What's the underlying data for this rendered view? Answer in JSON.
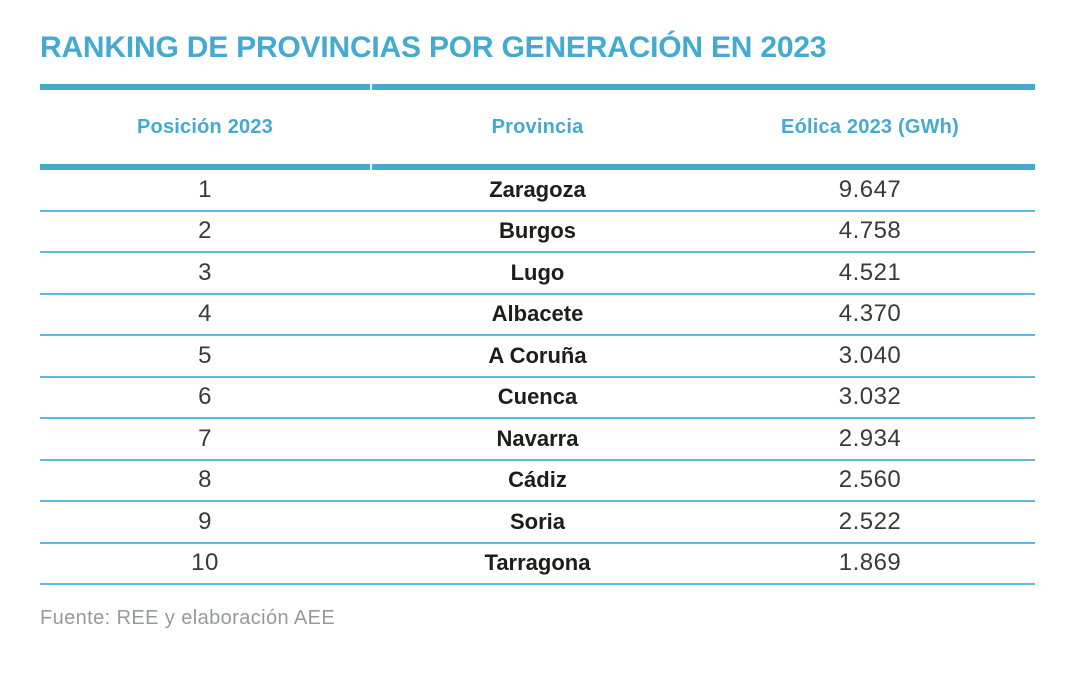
{
  "title": "RANKING DE PROVINCIAS POR GENERACIÓN EN 2023",
  "chart_data": {
    "type": "table",
    "title": "RANKING DE PROVINCIAS POR GENERACIÓN EN 2023",
    "columns": [
      "Posición 2023",
      "Provincia",
      "Eólica 2023 (GWh)"
    ],
    "unit": "GWh",
    "rows": [
      {
        "position": "1",
        "province": "Zaragoza",
        "value": "9.647"
      },
      {
        "position": "2",
        "province": "Burgos",
        "value": "4.758"
      },
      {
        "position": "3",
        "province": "Lugo",
        "value": "4.521"
      },
      {
        "position": "4",
        "province": "Albacete",
        "value": "4.370"
      },
      {
        "position": "5",
        "province": "A Coruña",
        "value": "3.040"
      },
      {
        "position": "6",
        "province": "Cuenca",
        "value": "3.032"
      },
      {
        "position": "7",
        "province": "Navarra",
        "value": "2.934"
      },
      {
        "position": "8",
        "province": "Cádiz",
        "value": "2.560"
      },
      {
        "position": "9",
        "province": "Soria",
        "value": "2.522"
      },
      {
        "position": "10",
        "province": "Tarragona",
        "value": "1.869"
      }
    ],
    "source": "Fuente: REE y elaboración AEE"
  },
  "footer": {
    "source": "Fuente: REE y elaboración AEE"
  },
  "colors": {
    "accent": "#45aad2",
    "thin_line": "#5fbadd",
    "number_text": "#3a3a38",
    "province_text": "#1d1d1b",
    "source_text": "#97999b",
    "background": "#ffffff"
  }
}
